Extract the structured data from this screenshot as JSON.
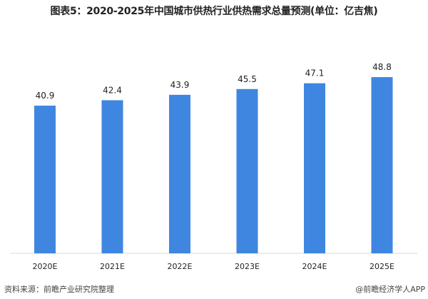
{
  "title": "图表5：2020-2025年中国城市供热行业供热需求总量预测(单位：亿吉焦)",
  "source": "资料来源：前瞻产业研究院整理",
  "credit": "@前瞻经济学人APP",
  "watermark": "前瞻产业研究院",
  "colors": {
    "bar": "#3f86e0",
    "axis": "#d9d9d9"
  },
  "chart_data": {
    "type": "bar",
    "title": "图表5：2020-2025年中国城市供热行业供热需求总量预测(单位：亿吉焦)",
    "categories": [
      "2020E",
      "2021E",
      "2022E",
      "2023E",
      "2024E",
      "2025E"
    ],
    "values": [
      40.9,
      42.4,
      43.9,
      45.5,
      47.1,
      48.8
    ],
    "value_labels": [
      "40.9",
      "42.4",
      "43.9",
      "45.5",
      "47.1",
      "48.8"
    ],
    "xlabel": "",
    "ylabel": "",
    "ylim": [
      0,
      54
    ],
    "grid": false,
    "legend": "none"
  }
}
